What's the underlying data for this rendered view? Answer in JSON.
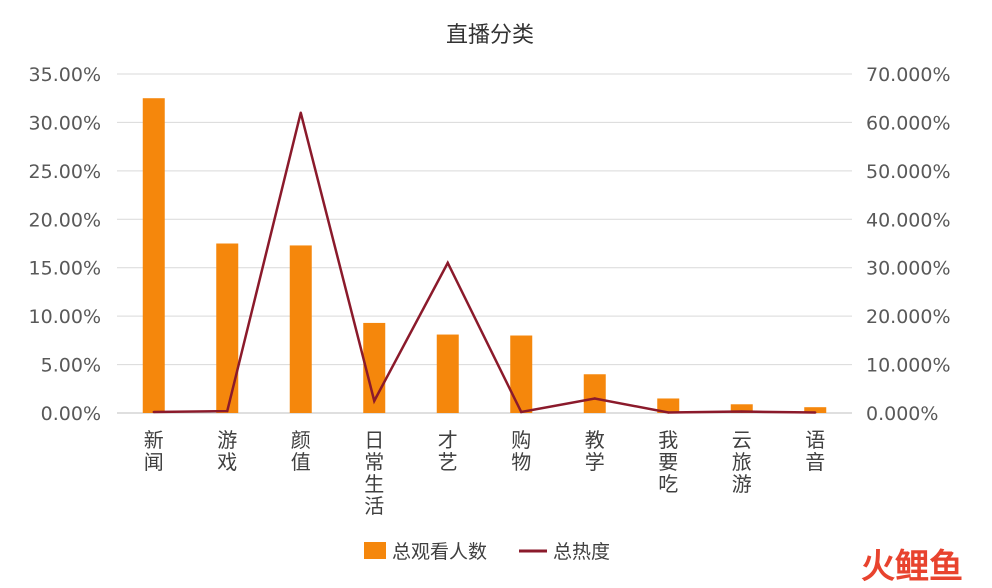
{
  "chart_data": {
    "type": "bar",
    "title": "直播分类",
    "categories": [
      "新闻",
      "游戏",
      "颜值",
      "日常生活",
      "才艺",
      "购物",
      "教学",
      "我要吃",
      "云旅游",
      "语音"
    ],
    "series": [
      {
        "name": "总观看人数",
        "type": "bar",
        "axis": "left",
        "color": "#F5870C",
        "values": [
          32.5,
          17.5,
          17.3,
          9.3,
          8.1,
          8.0,
          4.0,
          1.5,
          0.9,
          0.6
        ]
      },
      {
        "name": "总热度",
        "type": "line",
        "axis": "right",
        "color": "#8B1A2B",
        "values": [
          0.2,
          0.4,
          62.0,
          2.5,
          31.0,
          0.2,
          3.0,
          0.1,
          0.3,
          0.1
        ]
      }
    ],
    "y_left": {
      "ylim": [
        0,
        35
      ],
      "ticks": [
        "0.00%",
        "5.00%",
        "10.00%",
        "15.00%",
        "20.00%",
        "25.00%",
        "30.00%",
        "35.00%"
      ]
    },
    "y_right": {
      "ylim": [
        0,
        70
      ],
      "ticks": [
        "0.000%",
        "10.000%",
        "20.000%",
        "30.000%",
        "40.000%",
        "50.000%",
        "60.000%",
        "70.000%"
      ]
    },
    "grid": true,
    "legend": "bottom"
  },
  "brand_logo": {
    "text": "火鲤鱼",
    "color": "#E8432E"
  }
}
